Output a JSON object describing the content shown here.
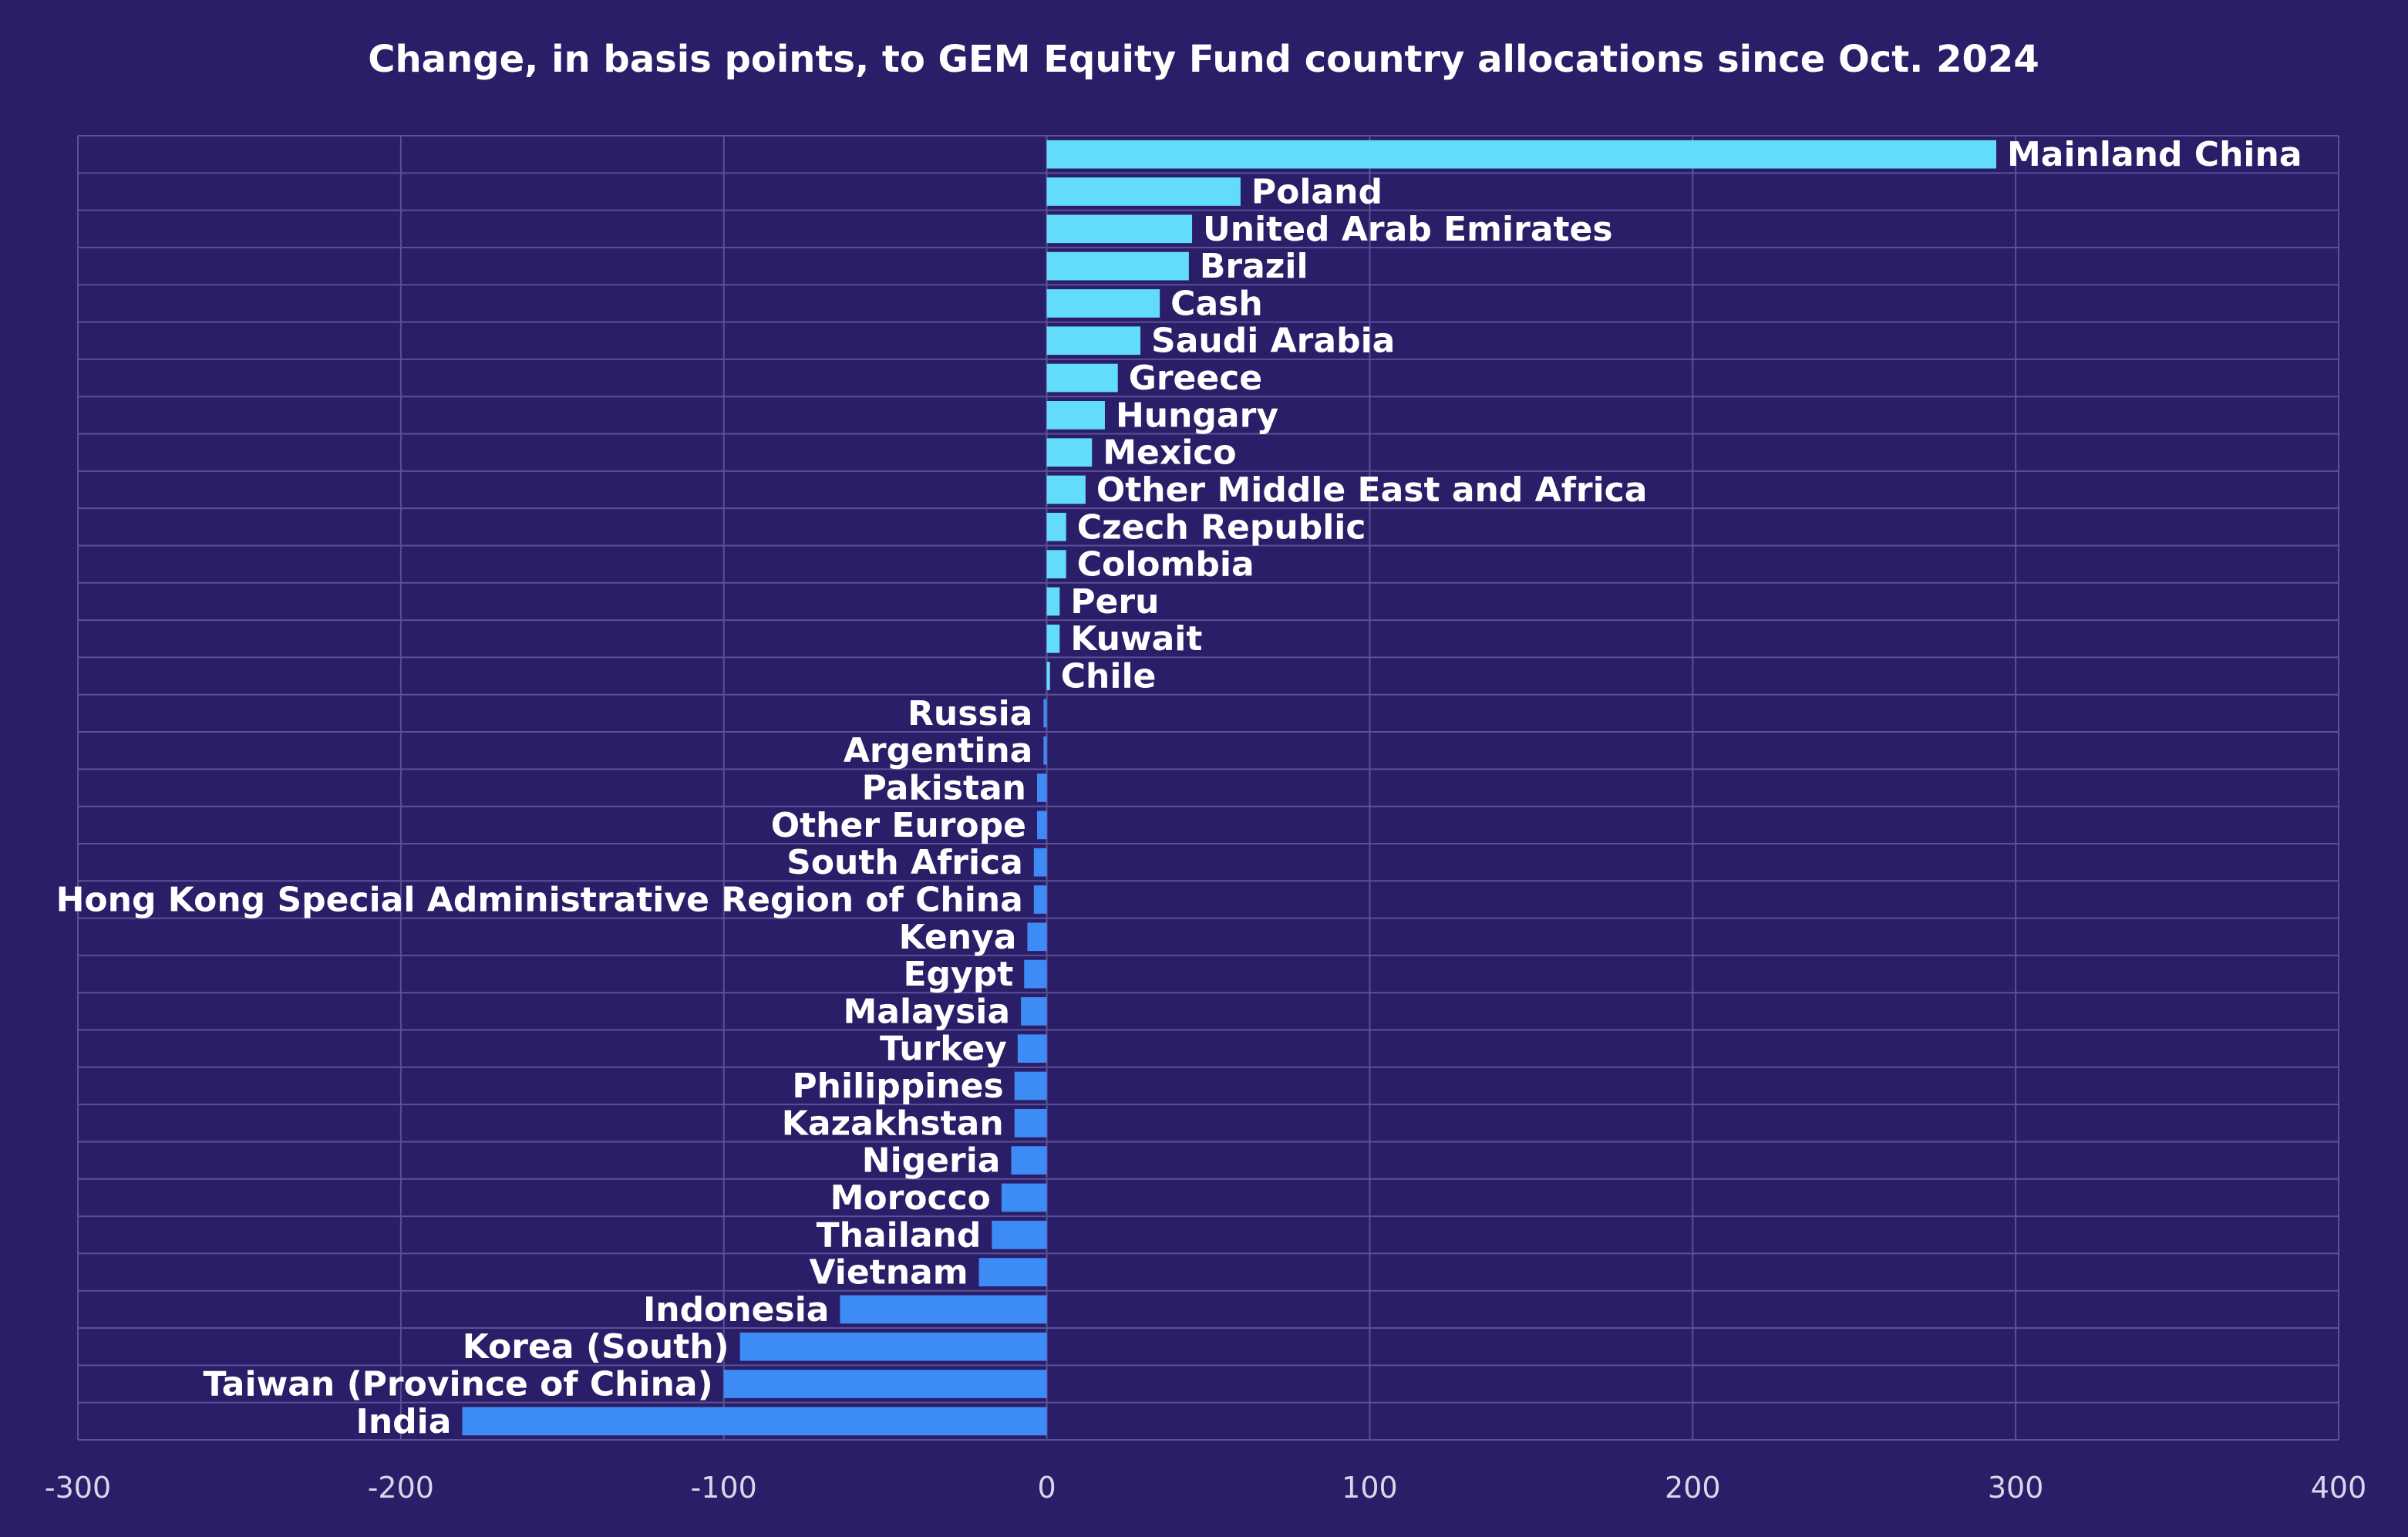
{
  "chart_data": {
    "type": "bar",
    "orientation": "horizontal",
    "title": "Change, in basis points, to GEM Equity Fund country allocations since Oct. 2024",
    "xlabel": "",
    "ylabel": "",
    "xlim": [
      -300,
      400
    ],
    "xticks": [
      -300,
      -200,
      -100,
      0,
      100,
      200,
      300,
      400
    ],
    "xtick_labels": [
      "-300",
      "-200",
      "-100",
      "0",
      "100",
      "200",
      "300",
      "400"
    ],
    "grid": true,
    "legend": "none",
    "colors": {
      "background": "#2b1e69",
      "positive": "#62dcfa",
      "negative": "#3d8cf5",
      "grid": "#5a5196",
      "text": "#ffffff",
      "tick_text": "#d8d6e8"
    },
    "categories": [
      "Mainland China",
      "Poland",
      "United Arab Emirates",
      "Brazil",
      "Cash",
      "Saudi Arabia",
      "Greece",
      "Hungary",
      "Mexico",
      "Other Middle East and Africa",
      "Czech Republic",
      "Colombia",
      "Peru",
      "Kuwait",
      "Chile",
      "Russia",
      "Argentina",
      "Pakistan",
      "Other Europe",
      "South Africa",
      "Hong Kong Special Administrative Region of China",
      "Kenya",
      "Egypt",
      "Malaysia",
      "Turkey",
      "Philippines",
      "Kazakhstan",
      "Nigeria",
      "Morocco",
      "Thailand",
      "Vietnam",
      "Indonesia",
      "Korea (South)",
      "Taiwan (Province of China)",
      "India"
    ],
    "values": [
      294,
      60,
      45,
      44,
      35,
      29,
      22,
      18,
      14,
      12,
      6,
      6,
      4,
      4,
      1,
      -1,
      -1,
      -3,
      -3,
      -4,
      -4,
      -6,
      -7,
      -8,
      -9,
      -10,
      -10,
      -11,
      -14,
      -17,
      -21,
      -64,
      -95,
      -100,
      -181
    ]
  }
}
